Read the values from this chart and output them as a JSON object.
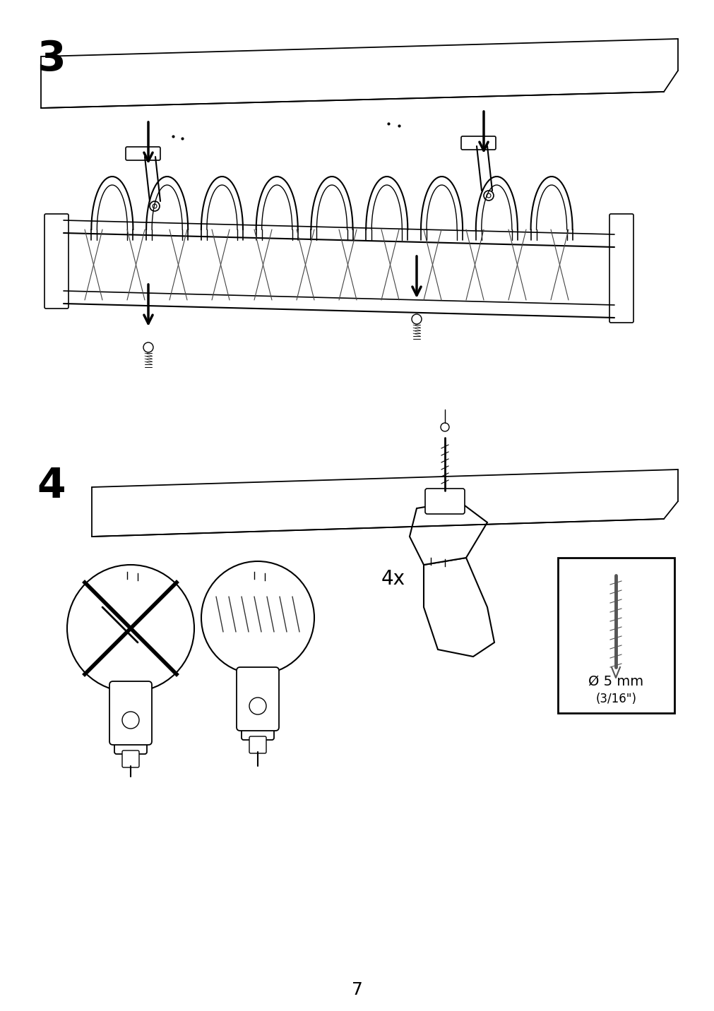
{
  "page_number": "7",
  "step3_label": "3",
  "step4_label": "4",
  "bg_color": "#ffffff",
  "line_color": "#000000",
  "fig_width": 10.12,
  "fig_height": 14.32,
  "dpi": 100
}
